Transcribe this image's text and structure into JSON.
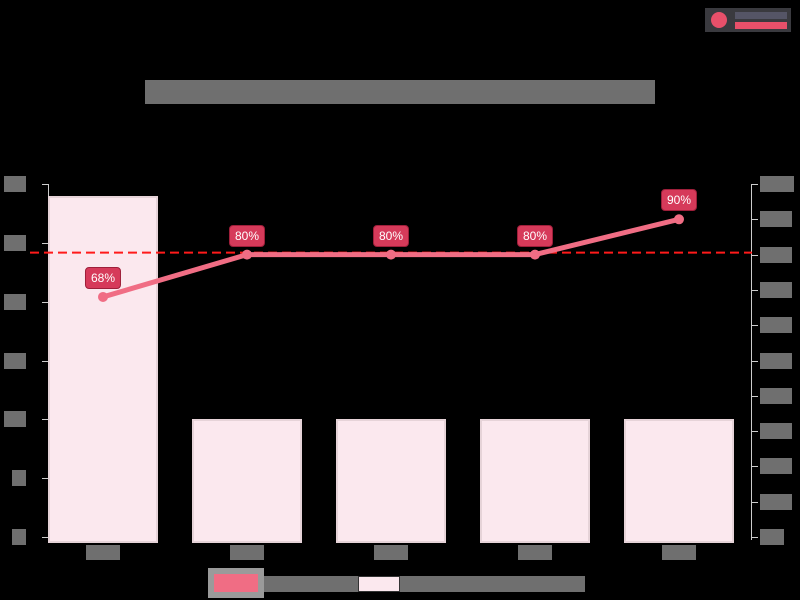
{
  "header": {
    "title": "[redacted chart title]",
    "logo": "logo-icon"
  },
  "chart_data": {
    "type": "bar+line",
    "title": "[redacted]",
    "categories": [
      "[redacted]",
      "[redacted]",
      "[redacted]",
      "[redacted]",
      "[redacted]"
    ],
    "series": [
      {
        "name": "[redacted line series]",
        "axis": "right",
        "type": "line",
        "color": "#f06d84",
        "values": [
          68,
          80,
          80,
          80,
          90
        ],
        "labels": [
          "68%",
          "80%",
          "80%",
          "80%",
          "90%"
        ]
      },
      {
        "name": "[redacted bar series]",
        "axis": "left",
        "type": "bar",
        "color": "#fbe8ee",
        "values": [
          29,
          10,
          10,
          10,
          10
        ]
      }
    ],
    "left_axis": {
      "ylim": [
        0,
        30
      ],
      "ticks": [
        0,
        5,
        10,
        15,
        20,
        25,
        30
      ]
    },
    "right_axis": {
      "ylim": [
        0,
        100
      ],
      "ticks": [
        0,
        10,
        20,
        30,
        40,
        50,
        60,
        70,
        80,
        90,
        100
      ],
      "unit": "%"
    },
    "reference_line": {
      "value": 80,
      "axis": "right",
      "style": "dashed",
      "color": "#ff1a1a"
    },
    "legend_position": "bottom",
    "grid": false
  },
  "legend": {
    "items": [
      {
        "label": "[redacted]",
        "color": "#f06d84"
      },
      {
        "label": "[redacted]",
        "color": "#fbe8ee"
      }
    ]
  }
}
